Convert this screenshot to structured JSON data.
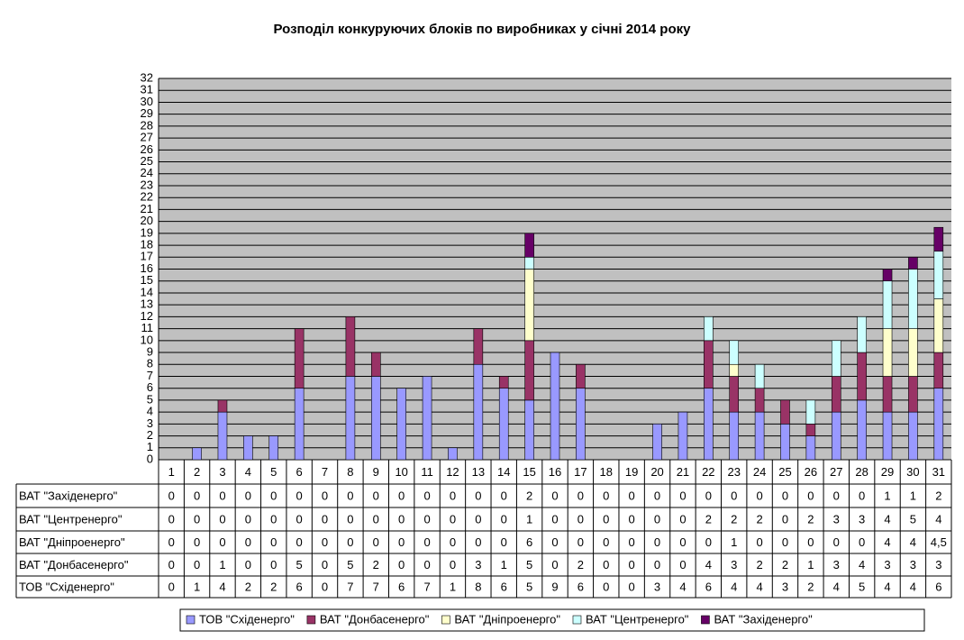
{
  "chart_data": {
    "type": "bar",
    "stacked": true,
    "title": "Розподіл конкуруючих блоків по виробниках у січні 2014 року",
    "categories": [
      "1",
      "2",
      "3",
      "4",
      "5",
      "6",
      "7",
      "8",
      "9",
      "10",
      "11",
      "12",
      "13",
      "14",
      "15",
      "16",
      "17",
      "18",
      "19",
      "20",
      "21",
      "22",
      "23",
      "24",
      "25",
      "26",
      "27",
      "28",
      "29",
      "30",
      "31"
    ],
    "series": [
      {
        "name": "ТОВ \"Східенерго\"",
        "color": "#9999ff",
        "values": [
          0,
          1,
          4,
          2,
          2,
          6,
          0,
          7,
          7,
          6,
          7,
          1,
          8,
          6,
          5,
          9,
          6,
          0,
          0,
          3,
          4,
          6,
          4,
          4,
          3,
          2,
          4,
          5,
          4,
          4,
          6
        ]
      },
      {
        "name": "ВАТ \"Донбасенерго\"",
        "color": "#993366",
        "values": [
          0,
          0,
          1,
          0,
          0,
          5,
          0,
          5,
          2,
          0,
          0,
          0,
          3,
          1,
          5,
          0,
          2,
          0,
          0,
          0,
          0,
          4,
          3,
          2,
          2,
          1,
          3,
          4,
          3,
          3,
          3
        ]
      },
      {
        "name": "ВАТ \"Дніпроенерго\"",
        "color": "#ffffcc",
        "values": [
          0,
          0,
          0,
          0,
          0,
          0,
          0,
          0,
          0,
          0,
          0,
          0,
          0,
          0,
          6,
          0,
          0,
          0,
          0,
          0,
          0,
          0,
          1,
          0,
          0,
          0,
          0,
          0,
          4,
          4,
          4.5
        ],
        "value_labels": [
          "0",
          "0",
          "0",
          "0",
          "0",
          "0",
          "0",
          "0",
          "0",
          "0",
          "0",
          "0",
          "0",
          "0",
          "6",
          "0",
          "0",
          "0",
          "0",
          "0",
          "0",
          "0",
          "1",
          "0",
          "0",
          "0",
          "0",
          "0",
          "4",
          "4",
          "4,5"
        ]
      },
      {
        "name": "ВАТ \"Центренерго\"",
        "color": "#ccffff",
        "values": [
          0,
          0,
          0,
          0,
          0,
          0,
          0,
          0,
          0,
          0,
          0,
          0,
          0,
          0,
          1,
          0,
          0,
          0,
          0,
          0,
          0,
          2,
          2,
          2,
          0,
          2,
          3,
          3,
          4,
          5,
          4
        ]
      },
      {
        "name": "ВАТ \"Західенерго\"",
        "color": "#660066",
        "values": [
          0,
          0,
          0,
          0,
          0,
          0,
          0,
          0,
          0,
          0,
          0,
          0,
          0,
          0,
          2,
          0,
          0,
          0,
          0,
          0,
          0,
          0,
          0,
          0,
          0,
          0,
          0,
          0,
          1,
          1,
          2
        ]
      }
    ],
    "ylim": [
      0,
      32
    ],
    "yticks": [
      0,
      1,
      2,
      3,
      4,
      5,
      6,
      7,
      8,
      9,
      10,
      11,
      12,
      13,
      14,
      15,
      16,
      17,
      18,
      19,
      20,
      21,
      22,
      23,
      24,
      25,
      26,
      27,
      28,
      29,
      30,
      31,
      32
    ],
    "grid": true,
    "legend": "bottom"
  }
}
